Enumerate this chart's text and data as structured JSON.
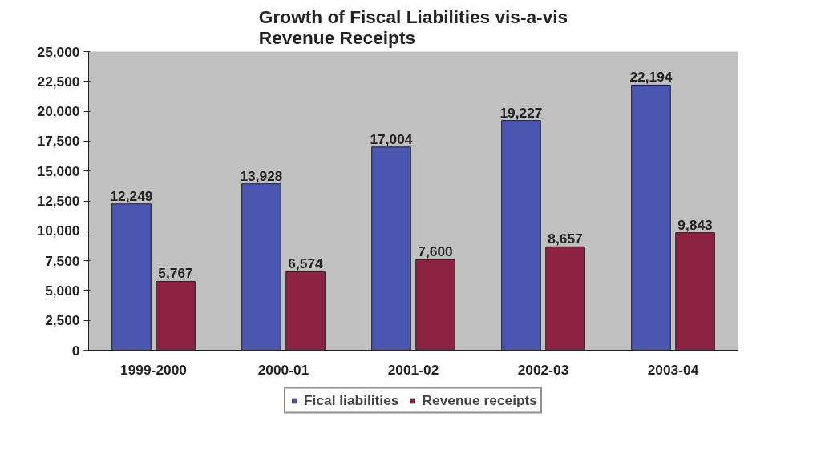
{
  "chart_data": {
    "type": "bar",
    "title": "Growth of Fiscal Liabilities vis-a-vis Revenue Receipts",
    "categories": [
      "1999-2000",
      "2000-01",
      "2001-02",
      "2002-03",
      "2003-04"
    ],
    "series": [
      {
        "name": "Fical liabilities",
        "color": "#4a56b0",
        "values": [
          12249,
          13928,
          17004,
          19227,
          22194
        ],
        "value_labels": [
          "12,249",
          "13,928",
          "17,004",
          "19,227",
          "22,194"
        ]
      },
      {
        "name": "Revenue receipts",
        "color": "#8c2343",
        "values": [
          5767,
          6574,
          7600,
          8657,
          9843
        ],
        "value_labels": [
          "5,767",
          "6,574",
          "7,600",
          "8,657",
          "9,843"
        ]
      }
    ],
    "ylim": [
      0,
      25000
    ],
    "yticks": [
      0,
      {
        "value": 2500,
        "label": "2,500"
      },
      {
        "value": 5000,
        "label": "5,000"
      },
      {
        "value": 7500,
        "label": "7,500"
      },
      {
        "value": 10000,
        "label": "10,000"
      },
      {
        "value": 12500,
        "label": "12,500"
      },
      {
        "value": 15000,
        "label": "15,000"
      },
      {
        "value": 17500,
        "label": "17,500"
      },
      {
        "value": 20000,
        "label": "20,000"
      },
      {
        "value": 22500,
        "label": "22,500"
      },
      {
        "value": 25000,
        "label": "25,000"
      }
    ],
    "legend": "bottom"
  }
}
